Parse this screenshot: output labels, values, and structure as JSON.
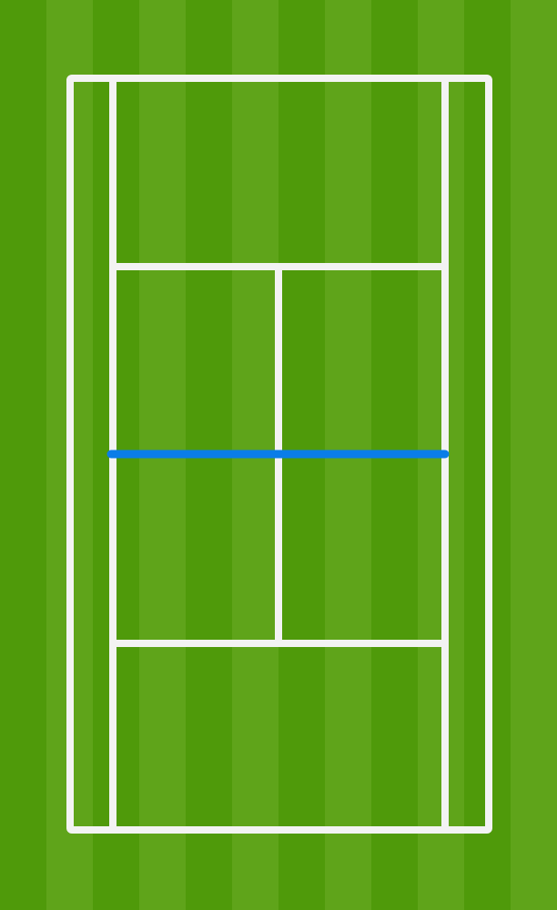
{
  "colors": {
    "grass_dark": "#4f9a0a",
    "grass_light": "#5fa41a",
    "court_line": "#f3f3f3",
    "net": "#0a7de8"
  }
}
